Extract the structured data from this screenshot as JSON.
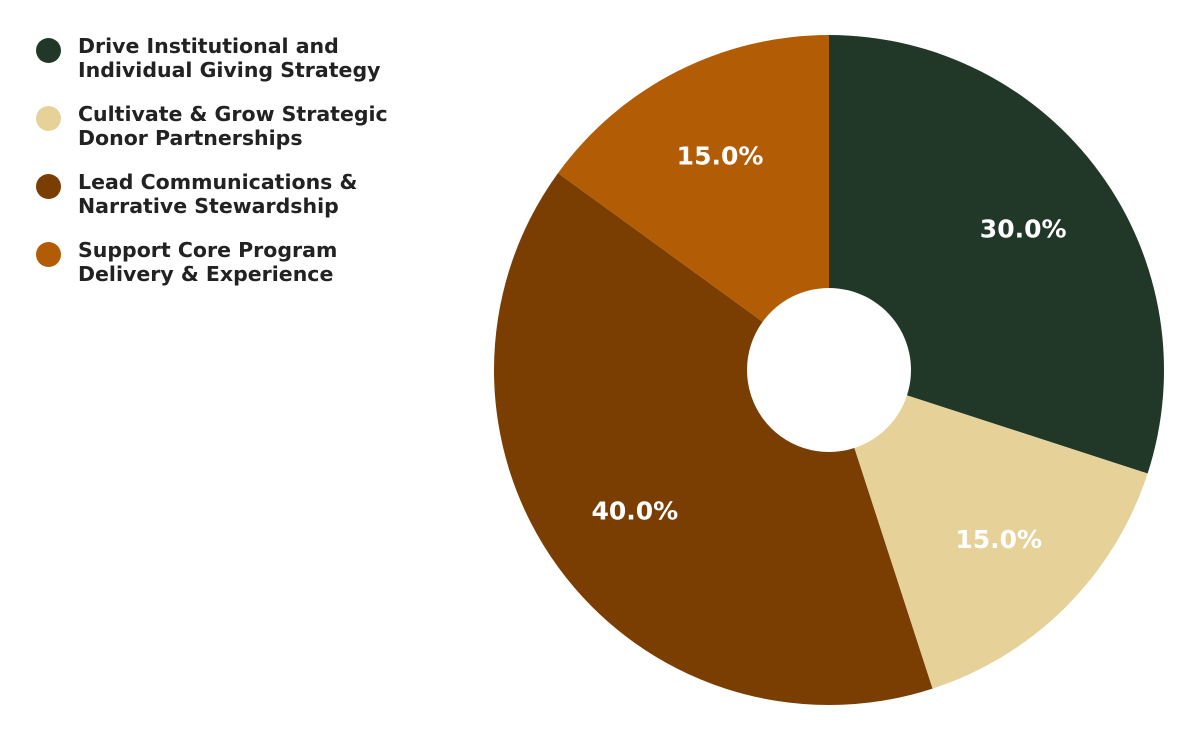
{
  "chart_data": {
    "type": "pie",
    "title": "",
    "donut": true,
    "legend_position": "top-left",
    "start_angle_deg": 0,
    "direction": "clockwise",
    "slices": [
      {
        "label": "Drive Institutional and\nIndividual Giving Strategy",
        "value": 30.0,
        "display": "30.0%",
        "color": "#213828"
      },
      {
        "label": "Cultivate & Grow Strategic\nDonor Partnerships",
        "value": 15.0,
        "display": "15.0%",
        "color": "#E6D299"
      },
      {
        "label": "Lead Communications &\nNarrative Stewardship",
        "value": 40.0,
        "display": "40.0%",
        "color": "#7A3E03"
      },
      {
        "label": "Support Core Program\nDelivery & Experience",
        "value": 15.0,
        "display": "15.0%",
        "color": "#B35C06"
      }
    ]
  }
}
